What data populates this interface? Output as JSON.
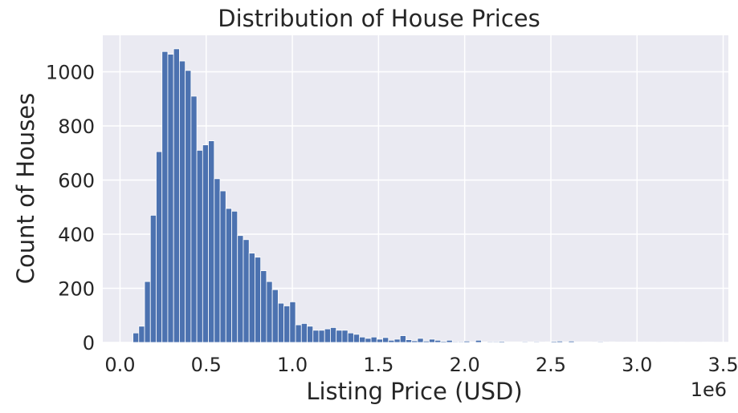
{
  "chart_data": {
    "type": "bar",
    "title": "Distribution of House Prices",
    "xlabel": "Listing Price (USD)",
    "ylabel": "Count of Houses",
    "x_offset_label": "1e6",
    "xlim": [
      -0.1,
      3.53
    ],
    "ylim": [
      0,
      1135
    ],
    "xticks": [
      0.0,
      0.5,
      1.0,
      1.5,
      2.0,
      2.5,
      3.0,
      3.5
    ],
    "xtick_labels": [
      "0.0",
      "0.5",
      "1.0",
      "1.5",
      "2.0",
      "2.5",
      "3.0",
      "3.5"
    ],
    "yticks": [
      0,
      200,
      400,
      600,
      800,
      1000
    ],
    "ytick_labels": [
      "0",
      "200",
      "400",
      "600",
      "800",
      "1000"
    ],
    "grid": true,
    "legend": "none",
    "bin_start": 0.075,
    "bin_width": 0.0337,
    "values": [
      35,
      60,
      225,
      470,
      705,
      1075,
      1065,
      1085,
      1040,
      1005,
      910,
      710,
      730,
      745,
      605,
      560,
      495,
      485,
      395,
      380,
      330,
      315,
      265,
      225,
      195,
      145,
      135,
      150,
      65,
      70,
      60,
      45,
      45,
      50,
      55,
      45,
      45,
      35,
      30,
      20,
      15,
      20,
      12,
      18,
      8,
      12,
      25,
      10,
      6,
      15,
      5,
      12,
      8,
      4,
      8,
      3,
      3,
      5,
      2,
      8,
      2,
      3,
      3,
      4,
      2,
      2,
      2,
      3,
      2,
      3,
      1,
      2,
      4,
      5,
      2,
      5,
      2,
      2,
      2,
      1,
      3,
      1,
      2,
      1,
      1,
      1,
      1,
      1,
      1,
      1,
      0,
      1,
      1,
      0,
      1,
      0,
      1,
      0,
      1,
      1
    ]
  },
  "colors": {
    "bar_fill": "#4c72b0",
    "bar_edge": "#ffffff",
    "plot_background": "#eaeaf2",
    "grid": "#ffffff",
    "text": "#262626"
  }
}
